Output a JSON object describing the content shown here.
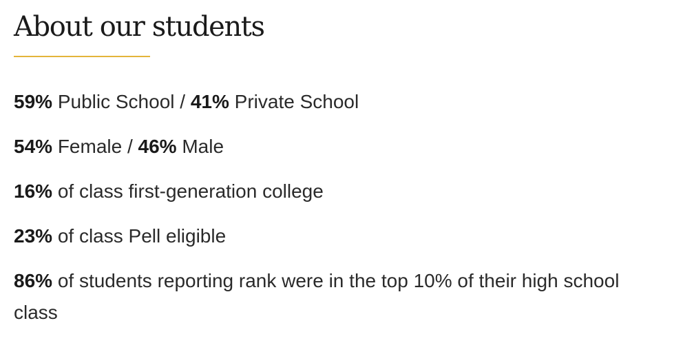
{
  "heading": {
    "title": "About our students",
    "accent_color": "#e4b43a"
  },
  "facts": [
    {
      "pct1": "59%",
      "text1": " Public School / ",
      "pct2": "41%",
      "text2": " Private School"
    },
    {
      "pct1": "54%",
      "text1": " Female / ",
      "pct2": "46%",
      "text2": " Male"
    },
    {
      "pct1": "16%",
      "text1": " of class first-generation college"
    },
    {
      "pct1": "23%",
      "text1": " of class Pell eligible"
    },
    {
      "pct1": "86%",
      "text1": " of students reporting rank were in the top 10% of their high school class"
    }
  ]
}
